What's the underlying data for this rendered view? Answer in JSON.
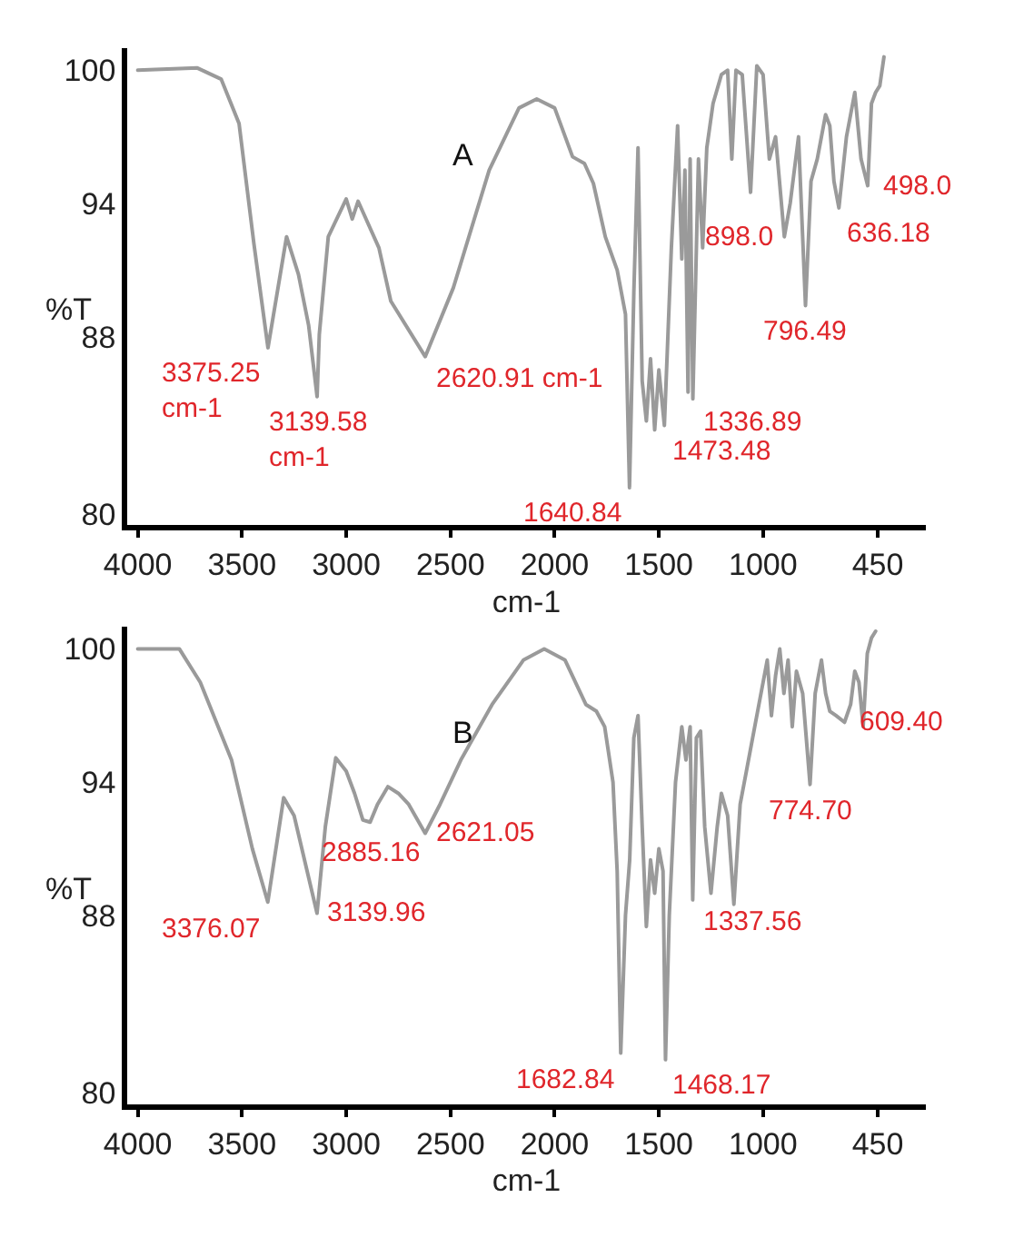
{
  "chart_data": [
    {
      "type": "line",
      "xlabel": "cm-1",
      "ylabel": "%T",
      "xlim": [
        4050,
        220
      ],
      "ylim": [
        79.5,
        101
      ],
      "xticks": [
        4000,
        3500,
        3000,
        2500,
        2000,
        1500,
        1000,
        450
      ],
      "yticks": [
        80,
        88,
        94,
        100
      ],
      "grid": false,
      "marker": "none",
      "line_style": "solid",
      "series": [
        {
          "color": "#9a9a9a",
          "x": [
            4000,
            3714,
            3600,
            3514,
            3443,
            3375.25,
            3286,
            3229,
            3180,
            3139.58,
            3129,
            3086,
            3000,
            2971,
            2943,
            2843,
            2786,
            2620.91,
            2486,
            2314,
            2171,
            2086,
            2000,
            1914,
            1857,
            1814,
            1757,
            1700,
            1660,
            1640.84,
            1620,
            1600,
            1580,
            1560,
            1540,
            1520,
            1500,
            1473.48,
            1440,
            1410,
            1390,
            1375,
            1360,
            1350,
            1336.89,
            1310,
            1290,
            1270,
            1240,
            1200,
            1170,
            1150,
            1130,
            1100,
            1060,
            1030,
            1000,
            970,
            940,
            898.0,
            870,
            830,
            796.49,
            770,
            740,
            700,
            680,
            660,
            636.18,
            600,
            560,
            530,
            498.0,
            480,
            460,
            440,
            420
          ],
          "values": [
            100,
            100.1,
            99.6,
            97.6,
            92.2,
            87.5,
            92.5,
            90.8,
            88.5,
            85.3,
            88.1,
            92.5,
            94.2,
            93.3,
            94.1,
            92,
            89.6,
            87.1,
            90.2,
            95.5,
            98.3,
            98.7,
            98.3,
            96.1,
            95.8,
            94.9,
            92.5,
            91,
            89,
            81.2,
            90,
            96.5,
            86,
            84.2,
            87,
            83.8,
            86.5,
            84,
            92,
            97.5,
            91.5,
            95.5,
            85.5,
            96,
            85.2,
            96,
            92,
            96.5,
            98.5,
            99.8,
            100,
            96,
            100,
            99.8,
            94.5,
            100.2,
            99.8,
            96,
            97,
            92.5,
            94,
            97,
            89.4,
            95,
            96,
            98,
            97.5,
            95,
            93.8,
            97,
            99,
            96,
            94.8,
            98.5,
            99,
            99.3,
            100.6
          ]
        }
      ],
      "annotations": [
        "A",
        {
          "text": "3375.25\ncm-1",
          "x": 3375.25,
          "y": 87.5
        },
        {
          "text": "3139.58\ncm-1",
          "x": 3139.58,
          "y": 85.3
        },
        {
          "text": "2620.91 cm-1",
          "x": 2620.91,
          "y": 87.1
        },
        {
          "text": "1640.84",
          "x": 1640.84,
          "y": 81.2
        },
        {
          "text": "1473.48",
          "x": 1473.48,
          "y": 84
        },
        {
          "text": "1336.89",
          "x": 1336.89,
          "y": 85.2
        },
        {
          "text": "898.0",
          "x": 898.0,
          "y": 92.5
        },
        {
          "text": "796.49",
          "x": 796.49,
          "y": 89.4
        },
        {
          "text": "636.18",
          "x": 636.18,
          "y": 93.8
        },
        {
          "text": "498.0",
          "x": 498.0,
          "y": 94.8
        }
      ]
    },
    {
      "type": "line",
      "xlabel": "cm-1",
      "ylabel": "%T",
      "xlim": [
        4050,
        220
      ],
      "ylim": [
        79.5,
        101
      ],
      "xticks": [
        4000,
        3500,
        3000,
        2500,
        2000,
        1500,
        1000,
        450
      ],
      "yticks": [
        80,
        88,
        94,
        100
      ],
      "grid": false,
      "marker": "none",
      "line_style": "solid",
      "series": [
        {
          "color": "#9a9a9a",
          "x": [
            4000,
            3800,
            3700,
            3550,
            3450,
            3376.07,
            3300,
            3250,
            3139.96,
            3100,
            3050,
            3000,
            2960,
            2920,
            2885.16,
            2850,
            2800,
            2750,
            2700,
            2621.05,
            2550,
            2450,
            2300,
            2150,
            2050,
            1950,
            1850,
            1800,
            1760,
            1720,
            1700,
            1682.84,
            1660,
            1640,
            1620,
            1600,
            1580,
            1560,
            1540,
            1520,
            1500,
            1480,
            1468.17,
            1450,
            1420,
            1390,
            1370,
            1350,
            1337.56,
            1320,
            1300,
            1280,
            1250,
            1220,
            1200,
            1170,
            1140,
            1110,
            1080,
            1040,
            1000,
            980,
            960,
            940,
            920,
            900,
            880,
            860,
            840,
            810,
            774.7,
            750,
            720,
            700,
            680,
            650,
            609.4,
            580,
            560,
            540,
            520,
            500,
            480,
            460
          ],
          "values": [
            100,
            100,
            98.5,
            95,
            91,
            88.6,
            93.3,
            92.5,
            88.1,
            92,
            95.1,
            94.5,
            93.5,
            92.3,
            92.2,
            93,
            93.8,
            93.5,
            93,
            91.7,
            93,
            95,
            97.5,
            99.5,
            100,
            99.5,
            97.5,
            97.2,
            96.5,
            94,
            90,
            81.8,
            88,
            90.5,
            96,
            97,
            92,
            87.5,
            90.5,
            89,
            91,
            90,
            81.5,
            88,
            94,
            96.5,
            95,
            96.5,
            88.7,
            96,
            96.3,
            92,
            89,
            92,
            93.5,
            92.5,
            88.5,
            93,
            94.5,
            96.5,
            98.5,
            99.5,
            97,
            98.8,
            100,
            98,
            99.5,
            96.5,
            99,
            98,
            93.9,
            98,
            99.5,
            98,
            97.2,
            97,
            96.7,
            97.5,
            99,
            98.5,
            96.5,
            99.8,
            100.5,
            100.8
          ]
        }
      ],
      "annotations": [
        "B",
        {
          "text": "3376.07",
          "x": 3376.07,
          "y": 88.6
        },
        {
          "text": "3139.96",
          "x": 3139.96,
          "y": 88.1
        },
        {
          "text": "2885.16",
          "x": 2885.16,
          "y": 92.2
        },
        {
          "text": "2621.05",
          "x": 2621.05,
          "y": 91.7
        },
        {
          "text": "1682.84",
          "x": 1682.84,
          "y": 81.8
        },
        {
          "text": "1468.17",
          "x": 1468.17,
          "y": 81.5
        },
        {
          "text": "1337.56",
          "x": 1337.56,
          "y": 88.7
        },
        {
          "text": "774.70",
          "x": 774.7,
          "y": 93.9
        },
        {
          "text": "609.40",
          "x": 609.4,
          "y": 96.7
        }
      ]
    }
  ]
}
